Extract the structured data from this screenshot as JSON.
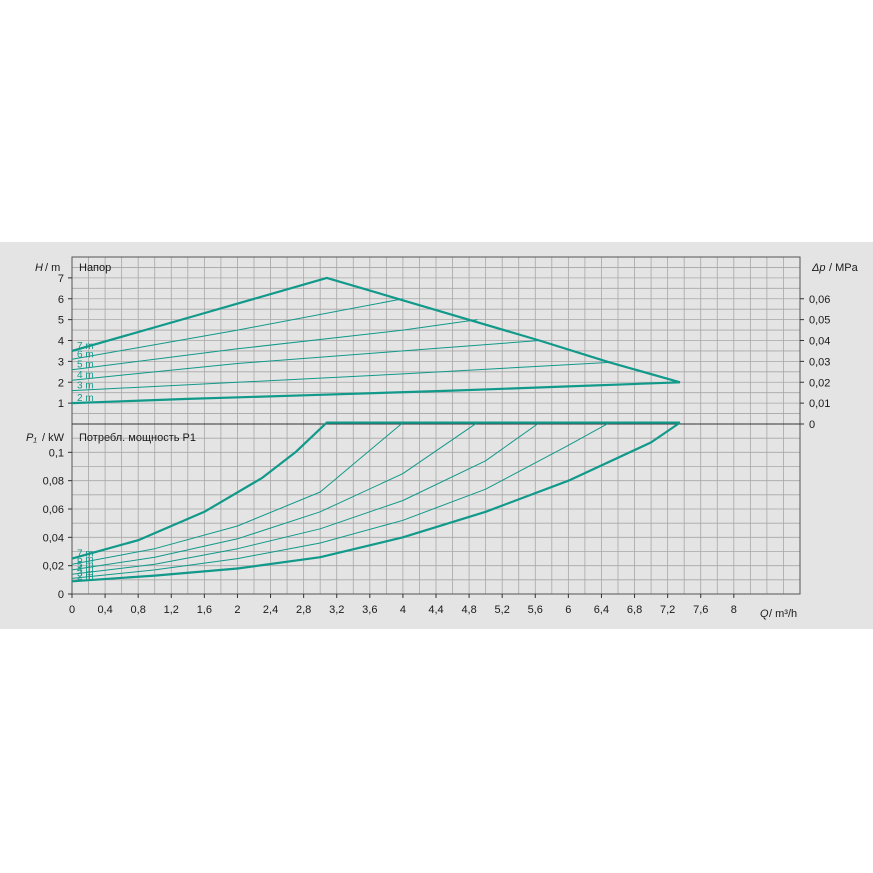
{
  "chart_data": [
    {
      "type": "line",
      "title": "Напор",
      "ylabel_symbol": "H",
      "ylabel_unit": "/ m",
      "y2label_symbol": "Δp",
      "y2label_unit": "/ MPa",
      "xlim": [
        0,
        8.8
      ],
      "ylim": [
        0,
        8
      ],
      "y2lim": [
        0,
        0.08
      ],
      "yticks": [
        "1",
        "2",
        "3",
        "4",
        "5",
        "6",
        "7"
      ],
      "y2ticks": [
        "0",
        "0,01",
        "0,02",
        "0,03",
        "0,04",
        "0,05",
        "0,06"
      ],
      "grid": true,
      "colors": {
        "curve": "#11998a",
        "grid": "#a7a7a7",
        "background": "#e4e4e4"
      },
      "series": [
        {
          "name": "2 m",
          "x": [
            0,
            1.4,
            3.0,
            4.6,
            6.0,
            7.35
          ],
          "y": [
            1.0,
            1.2,
            1.4,
            1.6,
            1.8,
            2.0
          ]
        },
        {
          "name": "3 m",
          "x": [
            0,
            2,
            4,
            6.5
          ],
          "y": [
            1.6,
            2.0,
            2.4,
            2.95
          ]
        },
        {
          "name": "4 m",
          "x": [
            0,
            2,
            4,
            5.65
          ],
          "y": [
            2.1,
            2.9,
            3.5,
            4.0
          ]
        },
        {
          "name": "5 m",
          "x": [
            0,
            2,
            4,
            4.9
          ],
          "y": [
            2.6,
            3.6,
            4.5,
            5.0
          ]
        },
        {
          "name": "6 m",
          "x": [
            0,
            2,
            4.0
          ],
          "y": [
            3.1,
            4.5,
            6.0
          ]
        },
        {
          "name": "7 m",
          "x": [
            0,
            1.5,
            3.08,
            5.65,
            6.5,
            7.35
          ],
          "y": [
            3.5,
            5.2,
            7.0,
            4.0,
            2.95,
            2.0
          ]
        }
      ]
    },
    {
      "type": "line",
      "title": "Потребл. мощность P1",
      "ylabel_symbol": "P₁",
      "ylabel_unit": "/ kW",
      "xlabel_symbol": "Q",
      "xlabel_unit": "/ m³/h",
      "xlim": [
        0,
        8.8
      ],
      "ylim": [
        0,
        0.12
      ],
      "xticks": [
        "0",
        "0,4",
        "0,8",
        "1,2",
        "1,6",
        "2",
        "2,4",
        "2,8",
        "3,2",
        "3,6",
        "4",
        "4,4",
        "4,8",
        "5,2",
        "5,6",
        "6",
        "6,4",
        "6,8",
        "7,2",
        "7,6",
        "8"
      ],
      "yticks": [
        "0",
        "0,02",
        "0,04",
        "0,06",
        "0,08",
        "0,1"
      ],
      "grid": true,
      "series": [
        {
          "name": "2 m",
          "x": [
            0,
            1,
            2,
            3,
            4,
            5,
            6,
            7,
            7.35
          ],
          "y": [
            0.009,
            0.013,
            0.018,
            0.026,
            0.04,
            0.058,
            0.08,
            0.107,
            0.121
          ]
        },
        {
          "name": "3 m",
          "x": [
            0,
            1,
            2,
            3,
            4,
            5,
            6,
            6.5
          ],
          "y": [
            0.011,
            0.017,
            0.025,
            0.036,
            0.052,
            0.074,
            0.105,
            0.121
          ]
        },
        {
          "name": "4 m",
          "x": [
            0,
            1,
            2,
            3,
            4,
            5,
            5.65
          ],
          "y": [
            0.014,
            0.021,
            0.032,
            0.046,
            0.066,
            0.094,
            0.121
          ]
        },
        {
          "name": "5 m",
          "x": [
            0,
            1,
            2,
            3,
            4,
            4.9
          ],
          "y": [
            0.017,
            0.026,
            0.039,
            0.058,
            0.085,
            0.121
          ]
        },
        {
          "name": "6 m",
          "x": [
            0,
            1,
            2,
            3,
            4.0
          ],
          "y": [
            0.021,
            0.032,
            0.048,
            0.072,
            0.121
          ]
        },
        {
          "name": "7 m",
          "x": [
            0,
            0.8,
            1.6,
            2.3,
            2.7,
            3.08,
            7.35
          ],
          "y": [
            0.025,
            0.038,
            0.058,
            0.082,
            0.1,
            0.121,
            0.121
          ]
        }
      ]
    }
  ]
}
